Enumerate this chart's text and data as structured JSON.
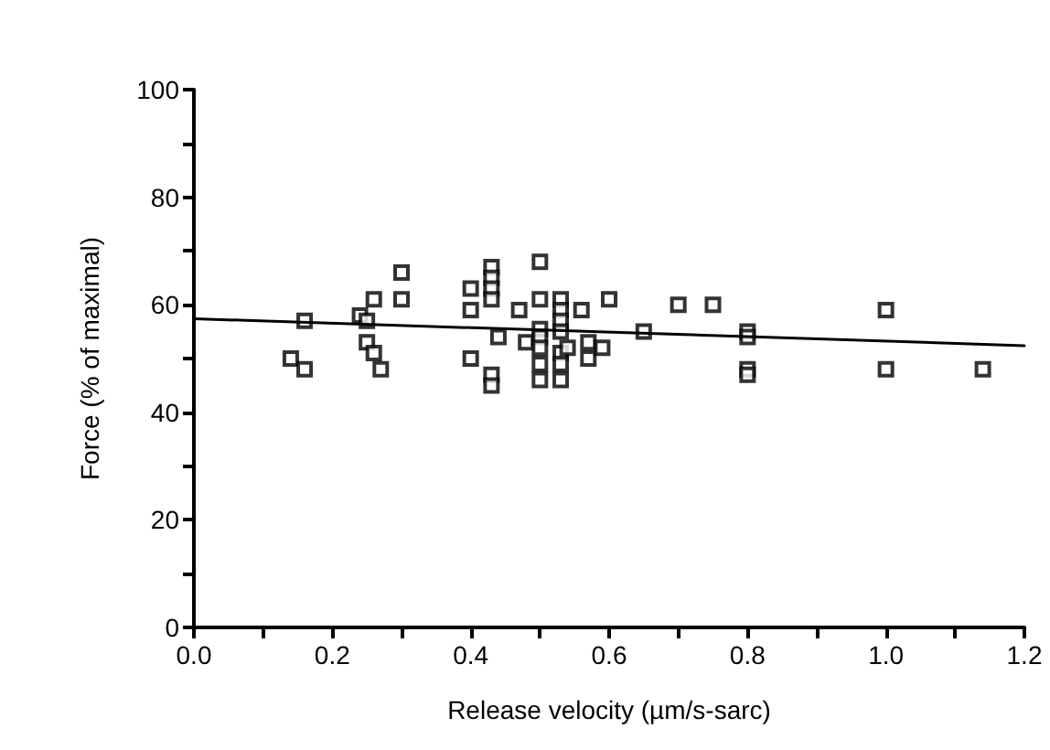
{
  "chart_data": {
    "type": "scatter",
    "xlabel": "Release velocity (µm/s-sarc)",
    "ylabel": "Force (% of maximal)",
    "xlim": [
      0,
      1.2
    ],
    "ylim": [
      0,
      100
    ],
    "xticks": [
      {
        "value": 0,
        "label": "0.0"
      },
      {
        "value": 0.1,
        "label": null
      },
      {
        "value": 0.2,
        "label": "0.2"
      },
      {
        "value": 0.3,
        "label": null
      },
      {
        "value": 0.4,
        "label": "0.4"
      },
      {
        "value": 0.5,
        "label": null
      },
      {
        "value": 0.6,
        "label": "0.6"
      },
      {
        "value": 0.7,
        "label": null
      },
      {
        "value": 0.8,
        "label": "0.8"
      },
      {
        "value": 0.9,
        "label": null
      },
      {
        "value": 1,
        "label": "1.0"
      },
      {
        "value": 1.1,
        "label": null
      },
      {
        "value": 1.2,
        "label": "1.2"
      }
    ],
    "yticks": [
      0,
      {
        "value": 10,
        "label": null
      },
      20,
      {
        "value": 30,
        "label": null
      },
      40,
      {
        "value": 50,
        "label": null
      },
      60,
      {
        "value": 70,
        "label": null
      },
      80,
      {
        "value": 90,
        "label": null
      },
      100
    ],
    "grid": false,
    "series": [
      {
        "marker": "square",
        "color": "#000000",
        "x": [
          0.14,
          0.16,
          0.16,
          0.24,
          0.25,
          0.26,
          0.25,
          0.26,
          0.27,
          0.3,
          0.3,
          0.4,
          0.4,
          0.4,
          0.43,
          0.43,
          0.43,
          0.43,
          0.43,
          0.43,
          0.44,
          0.47,
          0.48,
          0.5,
          0.5,
          0.5,
          0.5,
          0.5,
          0.5,
          0.5,
          0.53,
          0.53,
          0.53,
          0.53,
          0.53,
          0.53,
          0.53,
          0.54,
          0.56,
          0.57,
          0.57,
          0.59,
          0.6,
          0.65,
          0.7,
          0.75,
          0.8,
          0.8,
          0.8,
          0.8,
          1.0,
          1.0,
          1.14
        ],
        "values": [
          50,
          48,
          57,
          58,
          57,
          61,
          53,
          51,
          48,
          66,
          61,
          63,
          59,
          50,
          67,
          65,
          63,
          61,
          47,
          45,
          54,
          59,
          53,
          68,
          61,
          55.5,
          54,
          52,
          49,
          46,
          61,
          59,
          57,
          55,
          51,
          49,
          46,
          52,
          59,
          53,
          50,
          52,
          61,
          55,
          60,
          60,
          55,
          54,
          48,
          47,
          59,
          48,
          48
        ]
      },
      {
        "type": "line",
        "marker": "none",
        "line_style": "solid",
        "color": "#000000",
        "x": [
          0,
          1.2
        ],
        "values": [
          57.4,
          52.4
        ]
      }
    ]
  }
}
